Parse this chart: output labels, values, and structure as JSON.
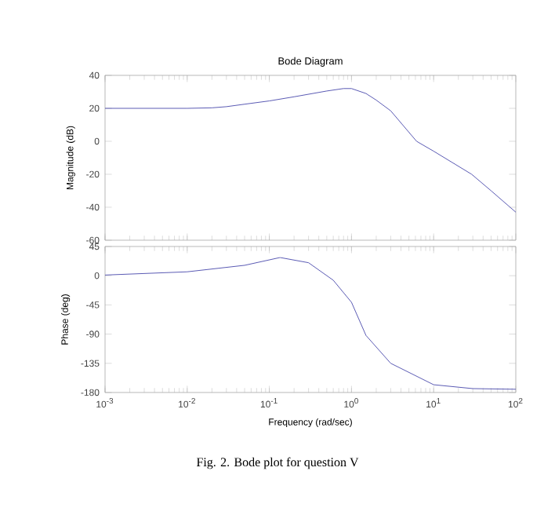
{
  "chart_data": [
    {
      "type": "line",
      "title": "Bode Diagram",
      "ylabel": "Magnitude (dB)",
      "log": "x",
      "xlim": [
        0.001,
        100
      ],
      "ylim": [
        -60,
        40
      ],
      "xticks": [
        0.001,
        0.01,
        0.1,
        1,
        10,
        100
      ],
      "yticks": [
        -60,
        -40,
        -20,
        0,
        20,
        40
      ],
      "tick_labels": "y",
      "series": [
        {
          "color": "#5a5ab4",
          "x": [
            0.001,
            0.01,
            0.02,
            0.03,
            0.05,
            0.1,
            0.2,
            0.5,
            0.8,
            1,
            1.5,
            2,
            3,
            6.2,
            10,
            29,
            50,
            100
          ],
          "values": [
            20,
            20,
            20.3,
            21,
            22.5,
            24.5,
            27,
            30.5,
            32,
            32,
            29,
            25,
            18.5,
            0,
            -6,
            -20,
            -30,
            -43
          ]
        }
      ]
    },
    {
      "type": "line",
      "xlabel": "Frequency  (rad/sec)",
      "ylabel": "Phase (deg)",
      "log": "x",
      "xlim": [
        0.001,
        100
      ],
      "ylim": [
        -180,
        45
      ],
      "xticks": [
        {
          "value": 0.001,
          "label": "10$^{-3}$"
        },
        {
          "value": 0.01,
          "label": "10$^{-2}$"
        },
        {
          "value": 0.1,
          "label": "10$^{-1}$"
        },
        {
          "value": 1,
          "label": "10$^{0}$"
        },
        {
          "value": 10,
          "label": "10$^{1}$"
        },
        {
          "value": 100,
          "label": "10$^{2}$"
        }
      ],
      "yticks": [
        -180,
        -135,
        -90,
        -45,
        0,
        45
      ],
      "annotations": [
        "Fig. 2.  Bode plot for question V"
      ],
      "series": [
        {
          "color": "#5a5ab4",
          "x": [
            0.001,
            0.01,
            0.05,
            0.135,
            0.3,
            0.6,
            1,
            1.5,
            3,
            10,
            30,
            100
          ],
          "values": [
            1,
            6,
            16,
            28,
            20,
            -7,
            -41,
            -92,
            -135,
            -168,
            -174,
            -175
          ]
        }
      ]
    }
  ]
}
